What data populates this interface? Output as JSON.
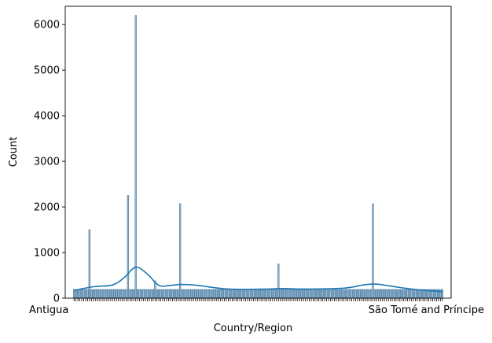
{
  "chart_data": {
    "type": "bar",
    "title": "",
    "xlabel": "Country/Region",
    "ylabel": "Count",
    "ylim": [
      0,
      6400
    ],
    "yticks": [
      0,
      1000,
      2000,
      3000,
      4000,
      5000,
      6000
    ],
    "num_categories": 192,
    "base_count": 190,
    "categories_visible_labels": [
      "Antigua",
      "São Tomé and Príncipe"
    ],
    "tall_bars": [
      {
        "category_index": 8,
        "value": 1500
      },
      {
        "category_index": 28,
        "value": 2250
      },
      {
        "category_index": 32,
        "value": 6200
      },
      {
        "category_index": 42,
        "value": 380
      },
      {
        "category_index": 55,
        "value": 2070
      },
      {
        "category_index": 106,
        "value": 750
      },
      {
        "category_index": 155,
        "value": 2070
      }
    ],
    "kde": {
      "x": [
        0,
        10,
        20,
        26,
        32,
        38,
        44,
        50,
        56,
        64,
        80,
        100,
        108,
        120,
        140,
        150,
        156,
        162,
        175,
        191
      ],
      "y": [
        170,
        250,
        290,
        450,
        680,
        530,
        280,
        280,
        300,
        280,
        200,
        200,
        210,
        200,
        220,
        290,
        310,
        280,
        200,
        140
      ]
    },
    "colors": {
      "bar_fill": "#a3c1d7",
      "bar_stroke": "#3a6f99",
      "kde_line": "#1f77b4"
    },
    "grid": false,
    "legend": "none"
  }
}
